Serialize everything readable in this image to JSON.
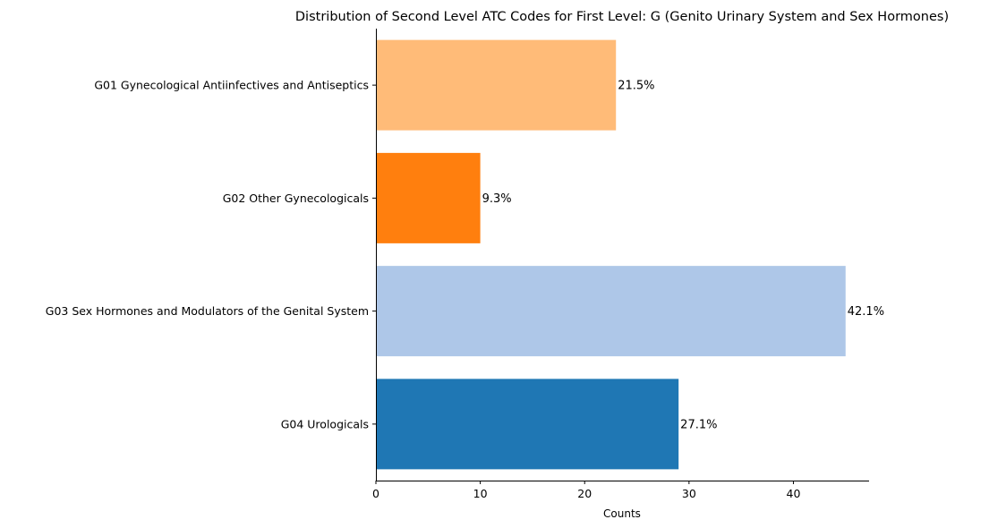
{
  "chart_data": {
    "type": "bar",
    "orientation": "horizontal",
    "title": "Distribution of Second Level ATC Codes for First Level: G (Genito Urinary System and Sex Hormones)",
    "xlabel": "Counts",
    "ylabel": "",
    "xlim": [
      0,
      47.25
    ],
    "xticks": [
      0,
      10,
      20,
      30,
      40
    ],
    "grid": false,
    "categories": [
      "G01 Gynecological Antiinfectives and Antiseptics",
      "G02 Other Gynecologicals",
      "G03 Sex Hormones and Modulators of the Genital System",
      "G04 Urologicals"
    ],
    "values": [
      23,
      10,
      45,
      29
    ],
    "labels": [
      "21.5%",
      "9.3%",
      "42.1%",
      "27.1%"
    ],
    "colors": [
      "#ffbb78",
      "#ff7f0e",
      "#aec7e8",
      "#1f77b4"
    ]
  }
}
